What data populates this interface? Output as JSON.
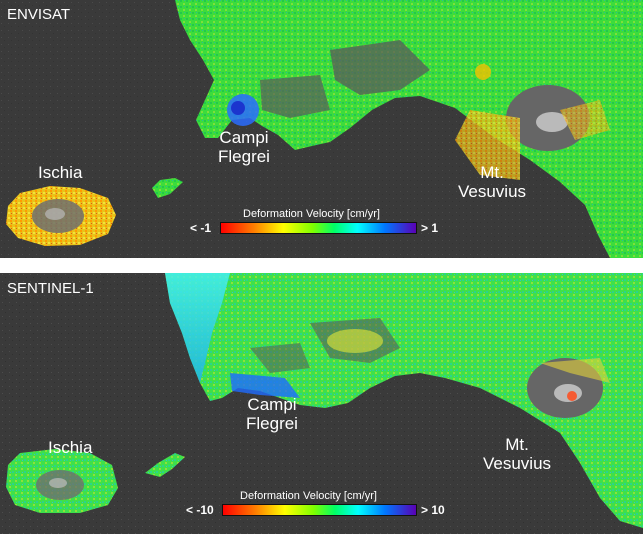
{
  "panels": [
    {
      "satellite": "ENVISAT",
      "places": {
        "ischia": "Ischia",
        "campi_1": "Campi",
        "campi_2": "Flegrei",
        "vesuvius_1": "Mt.",
        "vesuvius_2": "Vesuvius"
      },
      "legend": {
        "title": "Deformation Velocity [cm/yr]",
        "min": "< -1",
        "max": "> 1"
      }
    },
    {
      "satellite": "SENTINEL-1",
      "places": {
        "ischia": "Ischia",
        "campi_1": "Campi",
        "campi_2": "Flegrei",
        "vesuvius_1": "Mt.",
        "vesuvius_2": "Vesuvius"
      },
      "legend": {
        "title": "Deformation Velocity [cm/yr]",
        "min": "< -10",
        "max": "> 10"
      }
    }
  ],
  "colors": {
    "sea": "#3a3a3a",
    "land_dark": "#5c5c5c",
    "stable": "#33dd33",
    "uplift_bay": "#2a6cff",
    "subsidence": "#ff8c00"
  }
}
